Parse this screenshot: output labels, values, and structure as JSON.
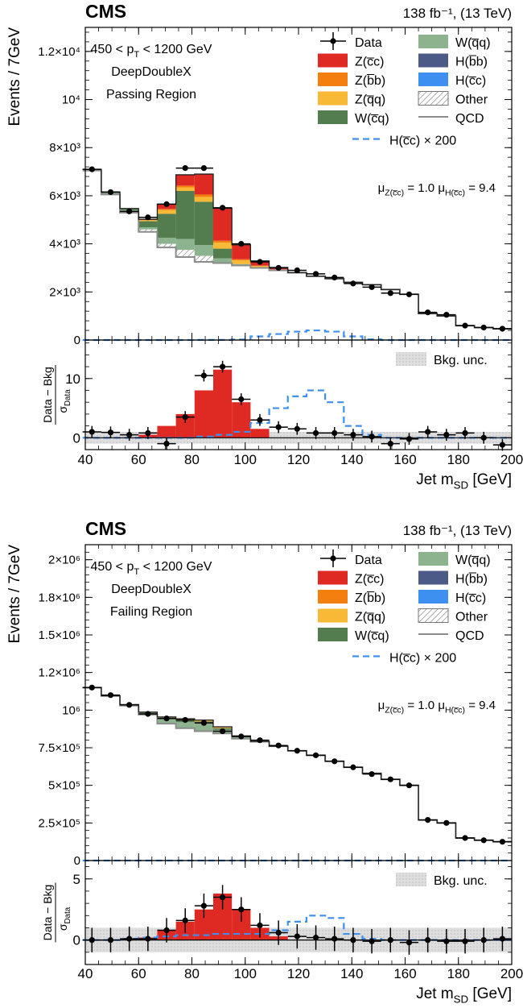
{
  "chart_data": [
    {
      "type": "bar",
      "subtype": "stacked-histogram-with-ratio",
      "experiment": "CMS",
      "lumi": "138 fb⁻¹,  (13 TeV)",
      "annotation_lines": [
        "450 < p",
        "DeepDoubleX",
        "Passing Region"
      ],
      "pt_label": {
        "pre": "450 < p",
        "sub": "T",
        "post": " < 1200 GeV"
      },
      "tagger": "DeepDoubleX",
      "region": "Passing Region",
      "mu_text": {
        "z_pre": "μ",
        "z_sub": "Z(c̅c)",
        "z_val": " = 1.0",
        "h_pre": "μ",
        "h_sub": "H(c̅c)",
        "h_val": " = 9.4"
      },
      "ylabel": "Events / 7GeV",
      "xlabel": {
        "pre": "Jet m",
        "sub": "SD",
        "post": " [GeV]"
      },
      "ratio_ylabel": {
        "num": "Data − Bkg",
        "den": "σ",
        "den_sub": "Data"
      },
      "x": [
        42.5,
        49.5,
        56.5,
        63.5,
        70.5,
        77.5,
        84.5,
        91.5,
        98.5,
        105.5,
        112.5,
        119.5,
        126.5,
        133.5,
        140.5,
        147.5,
        154.5,
        161.5,
        168.5,
        175.5,
        182.5,
        189.5,
        196.5
      ],
      "xlim": [
        40,
        200
      ],
      "xticks": [
        "40",
        "60",
        "80",
        "100",
        "120",
        "140",
        "160",
        "180",
        "200"
      ],
      "ylim": [
        0,
        13000
      ],
      "yticks": [
        {
          "label": "0",
          "value": 0
        },
        {
          "label": "2×10³",
          "value": 2000
        },
        {
          "label": "4×10³",
          "value": 4000
        },
        {
          "label": "6×10³",
          "value": 6000
        },
        {
          "label": "8×10³",
          "value": 8000
        },
        {
          "label": "10⁴",
          "value": 10000
        },
        {
          "label": "1.2×10⁴",
          "value": 12000
        }
      ],
      "series": [
        {
          "name": "QCD",
          "values": [
            7050,
            6050,
            5300,
            4500,
            3850,
            3450,
            3250,
            3200,
            3100,
            3000,
            2900,
            2800,
            2650,
            2550,
            2400,
            2300,
            2100,
            1900,
            1100,
            1000,
            600,
            520,
            470
          ]
        },
        {
          "name": "Other",
          "values": [
            0,
            0,
            50,
            100,
            150,
            300,
            250,
            0,
            0,
            0,
            0,
            0,
            0,
            0,
            0,
            0,
            0,
            0,
            0,
            0,
            0,
            0,
            0
          ]
        },
        {
          "name": "W(q̅q)",
          "values": [
            50,
            80,
            60,
            90,
            250,
            450,
            450,
            200,
            60,
            30,
            0,
            0,
            0,
            0,
            0,
            0,
            0,
            0,
            0,
            0,
            0,
            0,
            0
          ]
        },
        {
          "name": "W(c̅q)",
          "values": [
            0,
            30,
            60,
            250,
            1000,
            2000,
            1800,
            400,
            0,
            0,
            0,
            0,
            0,
            0,
            0,
            0,
            0,
            0,
            0,
            0,
            0,
            0,
            0
          ]
        },
        {
          "name": "Z(q̅q)",
          "values": [
            0,
            0,
            0,
            50,
            150,
            150,
            200,
            250,
            150,
            60,
            40,
            0,
            0,
            0,
            0,
            0,
            0,
            0,
            0,
            0,
            0,
            0,
            0
          ]
        },
        {
          "name": "Z(b̅b)",
          "values": [
            0,
            0,
            0,
            0,
            50,
            70,
            100,
            80,
            50,
            0,
            0,
            0,
            0,
            0,
            0,
            0,
            0,
            0,
            0,
            0,
            0,
            0,
            0
          ]
        },
        {
          "name": "Z(c̅c)",
          "values": [
            0,
            0,
            0,
            30,
            200,
            450,
            850,
            1350,
            600,
            200,
            80,
            0,
            0,
            0,
            0,
            0,
            0,
            0,
            0,
            0,
            0,
            0,
            0
          ]
        },
        {
          "name": "H(b̅b)",
          "values": [
            0,
            0,
            0,
            0,
            0,
            0,
            0,
            0,
            0,
            0,
            0,
            0,
            0,
            0,
            0,
            0,
            0,
            0,
            0,
            0,
            0,
            0,
            0
          ]
        },
        {
          "name": "H(c̅c)",
          "values": [
            0,
            0,
            0,
            0,
            0,
            0,
            0,
            0,
            0,
            0,
            0,
            0,
            0,
            0,
            0,
            0,
            0,
            0,
            0,
            0,
            0,
            0,
            0
          ]
        }
      ],
      "h_signal": {
        "name": "H(c̅c) × 200",
        "values": [
          0,
          0,
          0,
          0,
          0,
          0,
          5,
          5,
          20,
          150,
          250,
          350,
          400,
          350,
          150,
          30,
          0,
          0,
          0,
          0,
          0,
          0,
          0
        ]
      },
      "data": {
        "name": "Data",
        "values": [
          7100,
          6150,
          5350,
          5100,
          5650,
          7150,
          7150,
          5500,
          4000,
          3250,
          3000,
          2900,
          2750,
          2600,
          2350,
          2200,
          1950,
          1900,
          1150,
          1050,
          600,
          520,
          470
        ]
      },
      "ratio": {
        "ylim": [
          -2,
          16.5
        ],
        "yticks": [
          {
            "label": "0",
            "value": 0
          },
          {
            "label": "10",
            "value": 10
          }
        ],
        "signal": [
          0,
          0,
          0,
          0.5,
          2,
          4,
          8,
          11.5,
          6,
          1.5,
          0,
          0,
          0,
          0,
          0,
          0,
          0,
          0,
          0,
          0,
          0,
          0,
          0
        ],
        "h_signal": [
          0,
          0,
          0,
          0,
          0,
          0,
          0.2,
          0.5,
          1,
          2.5,
          5,
          7,
          8,
          6,
          2,
          0.5,
          0,
          0,
          0,
          0,
          0,
          0,
          0
        ],
        "data": [
          1,
          0.9,
          0.5,
          0.8,
          -1,
          3.5,
          10.5,
          12,
          6.5,
          3,
          1.8,
          1.5,
          0.8,
          0.8,
          0.5,
          0.2,
          -1,
          -0.2,
          1,
          0.5,
          0.8,
          0,
          -1.2
        ],
        "unc": 1.0,
        "unc_label": "Bkg. unc."
      },
      "legend": {
        "placement": "top-right",
        "col1": [
          "Data",
          "Z(c̅c)",
          "Z(b̅b)",
          "Z(q̅q)",
          "W(c̅q)"
        ],
        "col2": [
          "W(q̅q)",
          "H(b̅b)",
          "H(c̅c)",
          "Other",
          "QCD"
        ],
        "extra": "H(c̅c) × 200"
      }
    },
    {
      "type": "bar",
      "subtype": "stacked-histogram-with-ratio",
      "experiment": "CMS",
      "lumi": "138 fb⁻¹,  (13 TeV)",
      "pt_label": {
        "pre": "450 < p",
        "sub": "T",
        "post": " < 1200 GeV"
      },
      "tagger": "DeepDoubleX",
      "region": "Failing Region",
      "mu_text": {
        "z_pre": "μ",
        "z_sub": "Z(c̅c)",
        "z_val": " = 1.0",
        "h_pre": "μ",
        "h_sub": "H(c̅c)",
        "h_val": " = 9.4"
      },
      "ylabel": "Events / 7GeV",
      "xlabel": {
        "pre": "Jet m",
        "sub": "SD",
        "post": " [GeV]"
      },
      "ratio_ylabel": {
        "num": "Data − Bkg",
        "den": "σ",
        "den_sub": "Data"
      },
      "x": [
        42.5,
        49.5,
        56.5,
        63.5,
        70.5,
        77.5,
        84.5,
        91.5,
        98.5,
        105.5,
        112.5,
        119.5,
        126.5,
        133.5,
        140.5,
        147.5,
        154.5,
        161.5,
        168.5,
        175.5,
        182.5,
        189.5,
        196.5
      ],
      "xlim": [
        40,
        200
      ],
      "xticks": [
        "40",
        "60",
        "80",
        "100",
        "120",
        "140",
        "160",
        "180",
        "200"
      ],
      "ylim": [
        0,
        2100000
      ],
      "yticks": [
        {
          "label": "0",
          "value": 0
        },
        {
          "label": "2.5×10⁵",
          "value": 250000
        },
        {
          "label": "5×10⁵",
          "value": 500000
        },
        {
          "label": "7.5×10⁵",
          "value": 750000
        },
        {
          "label": "10⁶",
          "value": 1000000
        },
        {
          "label": "1.2×10⁶",
          "value": 1250000
        },
        {
          "label": "1.5×10⁶",
          "value": 1500000
        },
        {
          "label": "1.8×10⁶",
          "value": 1750000
        },
        {
          "label": "2×10⁶",
          "value": 2000000
        }
      ],
      "series": [
        {
          "name": "QCD",
          "values": [
            1150000,
            1095000,
            1030000,
            970000,
            910000,
            880000,
            860000,
            845000,
            810000,
            790000,
            760000,
            730000,
            700000,
            660000,
            620000,
            580000,
            540000,
            500000,
            270000,
            250000,
            150000,
            135000,
            125000
          ]
        },
        {
          "name": "Other",
          "values": [
            0,
            0,
            0,
            0,
            0,
            0,
            0,
            0,
            0,
            0,
            0,
            0,
            0,
            0,
            0,
            0,
            0,
            0,
            0,
            0,
            0,
            0,
            0
          ]
        },
        {
          "name": "W(q̅q)",
          "values": [
            0,
            0,
            5000,
            10000,
            30000,
            40000,
            50000,
            25000,
            10000,
            0,
            0,
            0,
            0,
            0,
            0,
            0,
            0,
            0,
            0,
            0,
            0,
            0,
            0
          ]
        },
        {
          "name": "W(c̅q)",
          "values": [
            0,
            0,
            2000,
            5000,
            10000,
            15000,
            15000,
            10000,
            3000,
            0,
            0,
            0,
            0,
            0,
            0,
            0,
            0,
            0,
            0,
            0,
            0,
            0,
            0
          ]
        },
        {
          "name": "Z(q̅q)",
          "values": [
            0,
            0,
            0,
            2000,
            3000,
            5000,
            6000,
            6000,
            4000,
            2000,
            0,
            0,
            0,
            0,
            0,
            0,
            0,
            0,
            0,
            0,
            0,
            0,
            0
          ]
        },
        {
          "name": "Z(b̅b)",
          "values": [
            0,
            0,
            0,
            0,
            2000,
            3000,
            3000,
            3000,
            2000,
            0,
            0,
            0,
            0,
            0,
            0,
            0,
            0,
            0,
            0,
            0,
            0,
            0,
            0
          ]
        },
        {
          "name": "Z(c̅c)",
          "values": [
            0,
            0,
            0,
            0,
            0,
            0,
            0,
            0,
            0,
            0,
            0,
            0,
            0,
            0,
            0,
            0,
            0,
            0,
            0,
            0,
            0,
            0,
            0
          ]
        },
        {
          "name": "H(b̅b)",
          "values": [
            0,
            0,
            0,
            0,
            0,
            0,
            0,
            0,
            0,
            0,
            0,
            0,
            0,
            0,
            0,
            0,
            0,
            0,
            0,
            0,
            0,
            0,
            0
          ]
        },
        {
          "name": "H(c̅c)",
          "values": [
            0,
            0,
            0,
            0,
            0,
            0,
            0,
            0,
            0,
            0,
            0,
            0,
            0,
            0,
            0,
            0,
            0,
            0,
            0,
            0,
            0,
            0,
            0
          ]
        }
      ],
      "h_signal": {
        "name": "H(c̅c) × 200",
        "values": [
          0,
          0,
          0,
          0,
          0,
          0,
          0,
          0,
          0,
          0,
          0,
          0,
          0,
          0,
          0,
          0,
          0,
          0,
          0,
          0,
          0,
          0,
          0
        ]
      },
      "data": {
        "name": "Data",
        "values": [
          1150000,
          1100000,
          1035000,
          975000,
          945000,
          935000,
          915000,
          860000,
          825000,
          800000,
          765000,
          730000,
          700000,
          660000,
          620000,
          575000,
          540000,
          500000,
          270000,
          250000,
          150000,
          135000,
          125000
        ]
      },
      "ratio": {
        "ylim": [
          -2,
          6.5
        ],
        "yticks": [
          {
            "label": "0",
            "value": 0
          },
          {
            "label": "5",
            "value": 5
          }
        ],
        "signal": [
          0,
          0,
          0,
          0.2,
          0.8,
          1.5,
          2.5,
          3.8,
          2.5,
          1,
          0.3,
          0,
          0,
          0,
          0,
          0,
          0,
          0,
          0,
          0,
          0,
          0,
          0
        ],
        "h_signal": [
          0,
          0,
          0.1,
          0.2,
          0.3,
          0.4,
          0.4,
          0.5,
          0.5,
          0.5,
          0.8,
          1.5,
          2,
          1.8,
          0.5,
          0.1,
          0,
          0,
          0,
          0,
          0,
          0,
          0
        ],
        "data": [
          0,
          0,
          0.1,
          0.1,
          0.8,
          1.6,
          2.8,
          3.5,
          2.5,
          1.2,
          0.6,
          0.3,
          0.2,
          0.1,
          0,
          -0.1,
          0,
          -0.2,
          0,
          -0.1,
          -0.1,
          0,
          0.1
        ],
        "unc": 1.0,
        "unc_label": "Bkg. unc."
      },
      "legend": {
        "placement": "top-right",
        "col1": [
          "Data",
          "Z(c̅c)",
          "Z(b̅b)",
          "Z(q̅q)",
          "W(c̅q)"
        ],
        "col2": [
          "W(q̅q)",
          "H(b̅b)",
          "H(c̅c)",
          "Other",
          "QCD"
        ],
        "extra": "H(c̅c) × 200"
      }
    }
  ],
  "colors": {
    "QCD": "#8c8c8c",
    "Other": "#ffffff",
    "W(q̅q)": "#8cb28e",
    "W(c̅q)": "#537d4f",
    "Z(q̅q)": "#f8b937",
    "Z(b̅b)": "#f27f0e",
    "Z(c̅c)": "#df2a24",
    "H(b̅b)": "#4b5a86",
    "H(c̅c)": "#3d8ff0",
    "signal_line": "#3d8ff0",
    "unc_band": "#d9d9d9"
  }
}
